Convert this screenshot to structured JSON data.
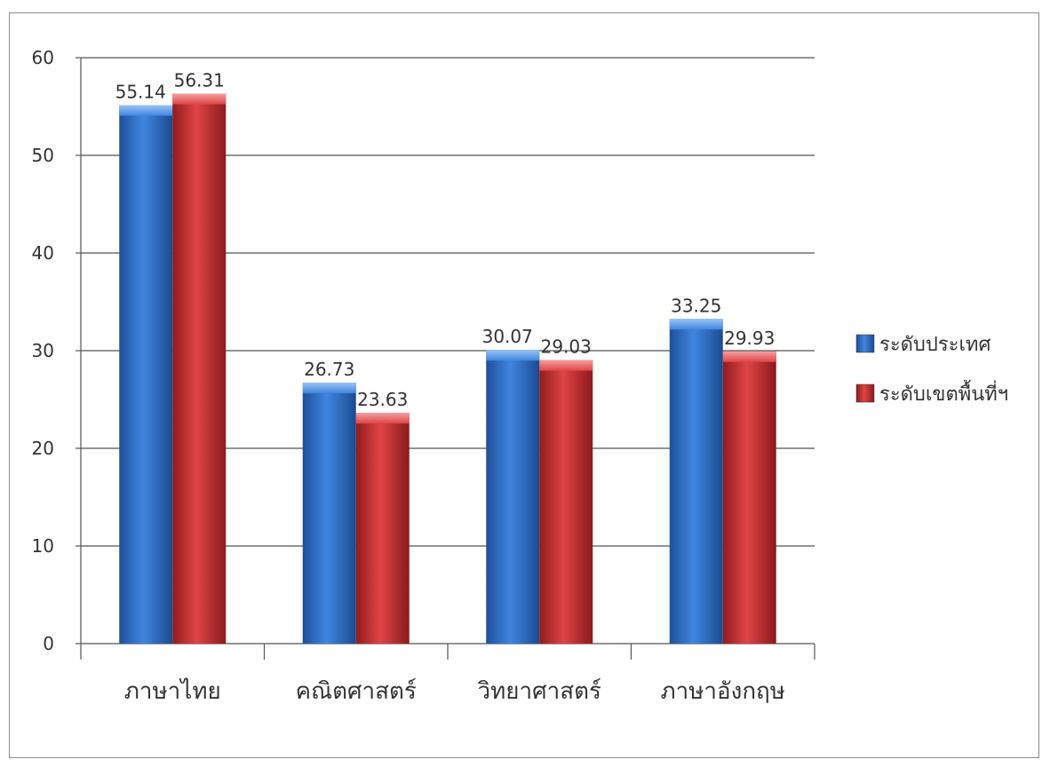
{
  "chart_data": {
    "type": "bar",
    "categories": [
      "ภาษาไทย",
      "คณิตศาสตร์",
      "วิทยาศาสตร์",
      "ภาษาอังกฤษ"
    ],
    "series": [
      {
        "name": "ระดับประเทศ",
        "values": [
          55.14,
          26.73,
          30.07,
          33.25
        ],
        "color": "#2f6ec6"
      },
      {
        "name": "ระดับเขตพื้นที่ฯ",
        "values": [
          56.31,
          23.63,
          29.03,
          29.93
        ],
        "color": "#c8292b"
      }
    ],
    "data_labels": [
      [
        "55.14",
        "26.73",
        "30.07",
        "33.25"
      ],
      [
        "56.31",
        "23.63",
        "29.03",
        "29.93"
      ]
    ],
    "title": "",
    "xlabel": "",
    "ylabel": "",
    "ylim": [
      0,
      60
    ],
    "yticks": [
      "0",
      "10",
      "20",
      "30",
      "40",
      "50",
      "60"
    ],
    "grid": true,
    "legend_position": "right"
  }
}
